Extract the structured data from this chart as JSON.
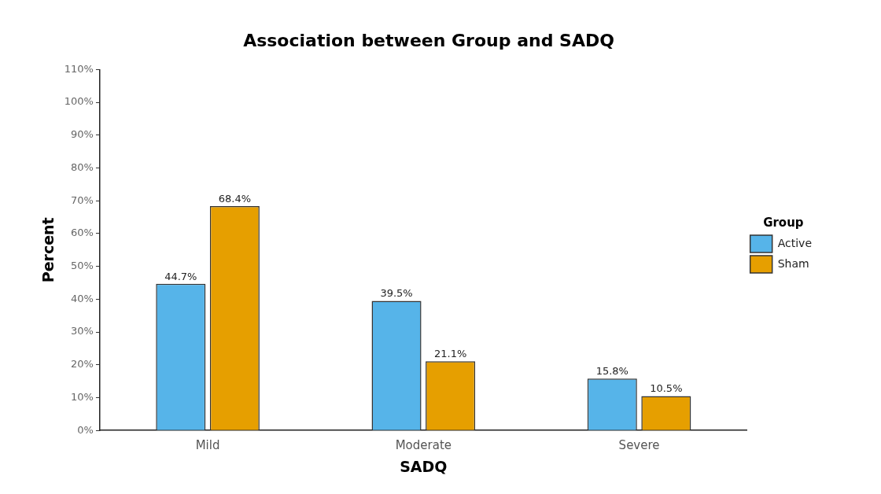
{
  "chart_data": {
    "type": "bar",
    "title": "Association between Group and SADQ",
    "xlabel": "SADQ",
    "ylabel": "Percent",
    "legend_title": "Group",
    "categories": [
      "Mild",
      "Moderate",
      "Severe"
    ],
    "series": [
      {
        "name": "Active",
        "color": "#56b4e9",
        "values": [
          44.7,
          39.5,
          15.8
        ],
        "value_labels": [
          "44.7%",
          "39.5%",
          "15.8%"
        ]
      },
      {
        "name": "Sham",
        "color": "#e69f00",
        "values": [
          68.4,
          21.1,
          10.5
        ],
        "value_labels": [
          "68.4%",
          "21.1%",
          "10.5%"
        ]
      }
    ],
    "ylim": [
      0,
      110
    ],
    "yticks": [
      {
        "value": 0,
        "label": "0%"
      },
      {
        "value": 10,
        "label": "10%"
      },
      {
        "value": 20,
        "label": "20%"
      },
      {
        "value": 30,
        "label": "30%"
      },
      {
        "value": 40,
        "label": "40%"
      },
      {
        "value": 50,
        "label": "50%"
      },
      {
        "value": 60,
        "label": "60%"
      },
      {
        "value": 70,
        "label": "70%"
      },
      {
        "value": 80,
        "label": "80%"
      },
      {
        "value": 90,
        "label": "90%"
      },
      {
        "value": 100,
        "label": "100%"
      },
      {
        "value": 110,
        "label": "110%"
      }
    ],
    "grid": false,
    "legend": "right"
  }
}
